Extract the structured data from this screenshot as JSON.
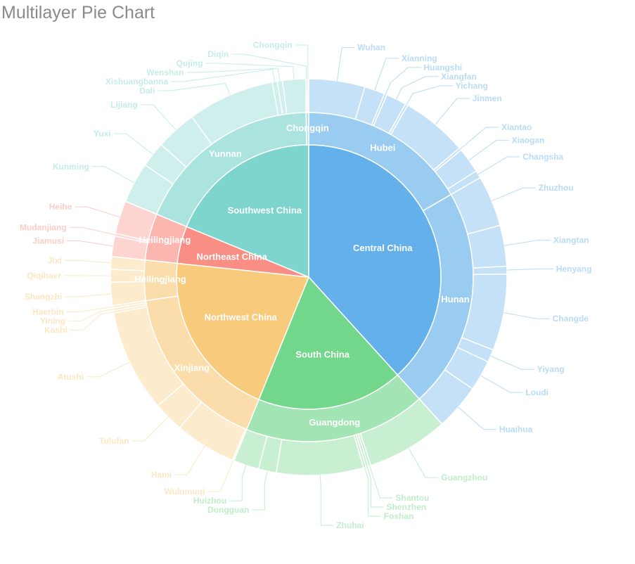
{
  "title": "Multilayer Pie Chart",
  "chart_data": {
    "type": "pie",
    "title": "Multilayer Pie Chart",
    "rings": [
      "region",
      "province",
      "city"
    ],
    "regions": [
      {
        "name": "Central China",
        "color": "#63b0eb",
        "provinces": [
          {
            "name": "Hubei",
            "cities": [
              {
                "name": "Wuhan",
                "value": 11
              },
              {
                "name": "Xianning",
                "value": 4
              },
              {
                "name": "Huangshi",
                "value": 0.5
              },
              {
                "name": "Xiangfan",
                "value": 4
              },
              {
                "name": "Yichang",
                "value": 0.5
              },
              {
                "name": "Jinmen",
                "value": 13
              },
              {
                "name": "Xiantao",
                "value": 0.5
              },
              {
                "name": "Xiaogan",
                "value": 5
              },
              {
                "name": "Changsha",
                "value": 1.5
              }
            ]
          },
          {
            "name": "Hunan",
            "cities": [
              {
                "name": "Zhuzhou",
                "value": 10
              },
              {
                "name": "Xiangtan",
                "value": 8
              },
              {
                "name": "Henyang",
                "value": 1.5
              },
              {
                "name": "Changde",
                "value": 15
              },
              {
                "name": "Yiyang",
                "value": 2.5
              },
              {
                "name": "Loudi",
                "value": 6
              },
              {
                "name": "Huaihua",
                "value": 9
              }
            ]
          }
        ]
      },
      {
        "name": "South China",
        "color": "#72d68b",
        "provinces": [
          {
            "name": "Guangdong",
            "cities": [
              {
                "name": "Guangzhou",
                "value": 16
              },
              {
                "name": "Shantou",
                "value": 0.5
              },
              {
                "name": "Shenzhen",
                "value": 0.5
              },
              {
                "name": "Foshan",
                "value": 0.5
              },
              {
                "name": "Zhuhai",
                "value": 17
              },
              {
                "name": "Dongguan",
                "value": 3.5
              },
              {
                "name": "Huizhou",
                "value": 5
              }
            ]
          }
        ]
      },
      {
        "name": "Northwest China",
        "color": "#f8ca7c",
        "provinces": [
          {
            "name": "Xinjiang",
            "cities": [
              {
                "name": "Wulumuqi",
                "value": 0.3
              },
              {
                "name": "Hami",
                "value": 12
              },
              {
                "name": "Tulufan",
                "value": 6
              },
              {
                "name": "Atushi",
                "value": 20
              },
              {
                "name": "Kashi",
                "value": 0.5
              },
              {
                "name": "Yining",
                "value": 0.5
              },
              {
                "name": "Haerbin",
                "value": 0.5
              }
            ]
          },
          {
            "name": "Heilingjiang",
            "cities": [
              {
                "name": "Shangzhi",
                "value": 4.5
              },
              {
                "name": "Qiqihaer",
                "value": 2.5
              },
              {
                "name": "Jixi",
                "value": 2.5
              }
            ]
          }
        ]
      },
      {
        "name": "Northeast China",
        "color": "#f98f84",
        "provinces": [
          {
            "name": "Heilingjiang",
            "cities": [
              {
                "name": "Jiamusi",
                "value": 4
              },
              {
                "name": "Mudanjiang",
                "value": 0.5
              },
              {
                "name": "Heihe",
                "value": 6.5
              }
            ]
          }
        ]
      },
      {
        "name": "Southwest China",
        "color": "#7dd5ce",
        "provinces": [
          {
            "name": "Yunnan",
            "cities": [
              {
                "name": "Kunming",
                "value": 8
              },
              {
                "name": "Yuxi",
                "value": 5
              },
              {
                "name": "Lijiang",
                "value": 8
              },
              {
                "name": "Dali",
                "value": 17
              },
              {
                "name": "Xishuangbanna",
                "value": 1
              },
              {
                "name": "Wenshan",
                "value": 1
              },
              {
                "name": "Qujing",
                "value": 4.5
              }
            ]
          },
          {
            "name": "Chongqin",
            "cities": [
              {
                "name": "Diqin",
                "value": 0.3
              },
              {
                "name": "Chongqin",
                "value": 0.3
              }
            ]
          }
        ]
      }
    ]
  }
}
